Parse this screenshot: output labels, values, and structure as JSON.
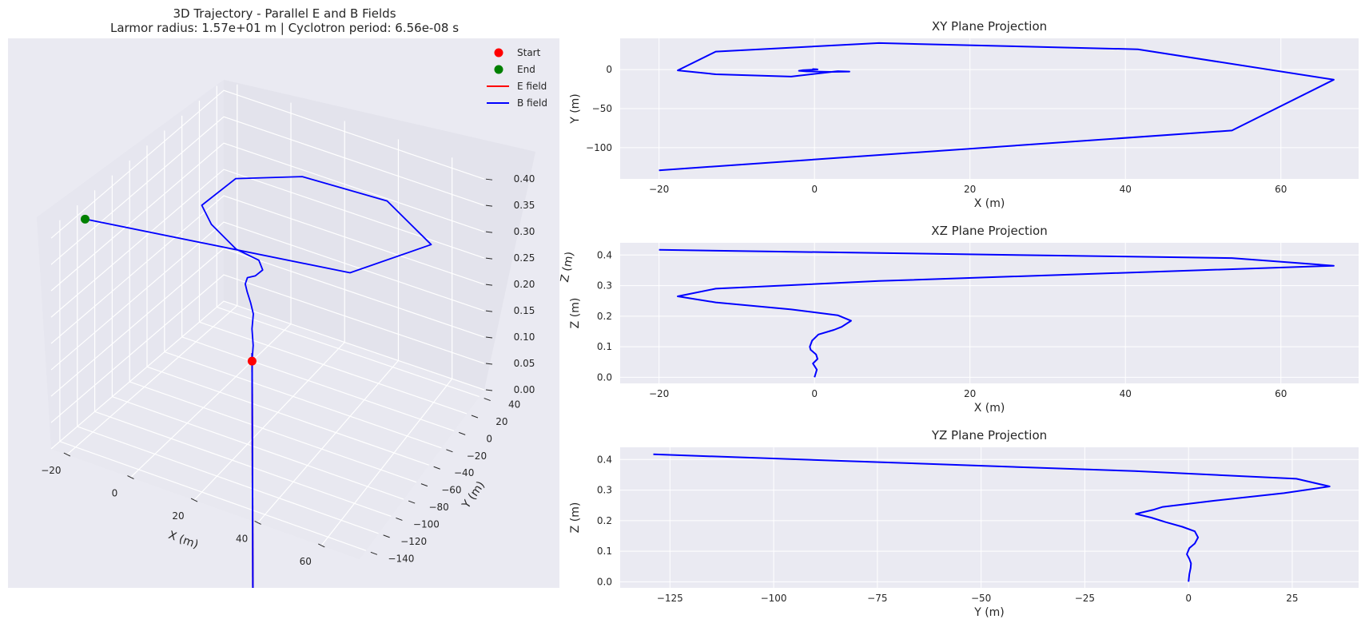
{
  "figure": {
    "title_line1": "3D Trajectory - Parallel E and B Fields",
    "title_line2": "Larmor radius: 1.57e+01 m | Cyclotron period: 6.56e-08 s"
  },
  "colors": {
    "panel_bg": "#eaeaf2",
    "grid": "#ffffff",
    "trajectory": "#0000ff",
    "e_field": "#ff0000",
    "b_field": "#0000ff",
    "start": "#ff0000",
    "end": "#008000"
  },
  "legend": {
    "placement": "top-right",
    "items": [
      {
        "label": "Start",
        "kind": "marker",
        "color": "#ff0000"
      },
      {
        "label": "End",
        "kind": "marker",
        "color": "#008000"
      },
      {
        "label": "E field",
        "kind": "line",
        "color": "#ff0000"
      },
      {
        "label": "B field",
        "kind": "line",
        "color": "#0000ff"
      }
    ]
  },
  "chart_data": [
    {
      "id": "traj3d",
      "type": "line",
      "projection": "3d",
      "title": "3D Trajectory - Parallel E and B Fields",
      "xlabel": "X (m)",
      "ylabel": "Y (m)",
      "zlabel": "Z (m)",
      "xticks": [
        -20,
        0,
        20,
        40,
        60
      ],
      "yticks": [
        40,
        20,
        0,
        -20,
        -40,
        -60,
        -80,
        -100,
        -120,
        -140
      ],
      "zticks": [
        0.0,
        0.05,
        0.1,
        0.15,
        0.2,
        0.25,
        0.3,
        0.35,
        0.4
      ],
      "zticks_text": [
        "0.00",
        "0.05",
        "0.10",
        "0.15",
        "0.20",
        "0.25",
        "0.30",
        "0.35",
        "0.40"
      ],
      "start": [
        0,
        0,
        0
      ],
      "end": [
        -20,
        -129,
        0.417
      ],
      "series": [
        {
          "x": [
            0,
            0.3,
            -0.2,
            0.4,
            -0.4,
            -1.5,
            -2,
            -1,
            2,
            4.5,
            3,
            -3,
            -12.7,
            -17.6,
            -12.7,
            8.3,
            41.6,
            66.8,
            53.7,
            -20
          ],
          "y": [
            0,
            0.3,
            0.6,
            0.2,
            -0.3,
            -0.8,
            -1.5,
            -2.3,
            -3,
            -2.5,
            -2,
            -9,
            -6,
            -1,
            23,
            34,
            26,
            -13,
            -78,
            -129
          ],
          "z": [
            0,
            0.03,
            0.06,
            0.09,
            0.11,
            0.13,
            0.145,
            0.16,
            0.17,
            0.185,
            0.2,
            0.22,
            0.245,
            0.265,
            0.29,
            0.315,
            0.34,
            0.365,
            0.39,
            0.417
          ]
        }
      ],
      "field_lines": [
        {
          "name": "E field",
          "direction": "z"
        },
        {
          "name": "B field",
          "direction": "z"
        }
      ]
    },
    {
      "id": "xy",
      "type": "line",
      "title": "XY Plane Projection",
      "xlabel": "X (m)",
      "ylabel": "Y (m)",
      "xlim": [
        -25,
        70
      ],
      "ylim": [
        -140,
        40
      ],
      "xticks": [
        -20,
        0,
        20,
        40,
        60
      ],
      "yticks": [
        -100,
        -50,
        0
      ],
      "xticks_text": [
        "−20",
        "0",
        "20",
        "40",
        "60"
      ],
      "yticks_text": [
        "−100",
        "−50",
        "0"
      ],
      "grid": true,
      "series": [
        {
          "x": [
            0,
            0.3,
            -0.2,
            0.4,
            -0.4,
            -1.5,
            -2,
            -1,
            2,
            4.5,
            3,
            -3,
            -12.7,
            -17.6,
            -12.7,
            8.3,
            41.6,
            66.8,
            53.7,
            -20
          ],
          "y": [
            0,
            0.3,
            0.6,
            0.2,
            -0.3,
            -0.8,
            -1.5,
            -2.3,
            -3,
            -2.5,
            -2,
            -9,
            -6,
            -1,
            23,
            34,
            26,
            -13,
            -78,
            -129
          ]
        }
      ]
    },
    {
      "id": "xz",
      "type": "line",
      "title": "XZ Plane Projection",
      "xlabel": "X (m)",
      "ylabel": "Z (m)",
      "xlim": [
        -25,
        70
      ],
      "ylim": [
        -0.02,
        0.44
      ],
      "xticks": [
        -20,
        0,
        20,
        40,
        60
      ],
      "yticks": [
        0.0,
        0.1,
        0.2,
        0.3,
        0.4
      ],
      "xticks_text": [
        "−20",
        "0",
        "20",
        "40",
        "60"
      ],
      "yticks_text": [
        "0.0",
        "0.1",
        "0.2",
        "0.3",
        "0.4"
      ],
      "grid": true,
      "series": [
        {
          "x": [
            0,
            0.3,
            -0.2,
            0.4,
            0.2,
            -0.5,
            -0.6,
            -0.3,
            0.5,
            2.5,
            3.5,
            4.7,
            3,
            -3,
            -12.7,
            -17.6,
            -12.7,
            8.3,
            66.8,
            53.7,
            -20
          ],
          "y": [
            0,
            0.025,
            0.045,
            0.06,
            0.075,
            0.09,
            0.1,
            0.12,
            0.14,
            0.155,
            0.165,
            0.185,
            0.203,
            0.222,
            0.245,
            0.265,
            0.29,
            0.315,
            0.365,
            0.39,
            0.417
          ]
        }
      ]
    },
    {
      "id": "yz",
      "type": "line",
      "title": "YZ Plane Projection",
      "xlabel": "Y (m)",
      "ylabel": "Z (m)",
      "xlim": [
        -137,
        41
      ],
      "ylim": [
        -0.02,
        0.44
      ],
      "xticks": [
        -125,
        -100,
        -75,
        -50,
        -25,
        0,
        25
      ],
      "yticks": [
        0.0,
        0.1,
        0.2,
        0.3,
        0.4
      ],
      "xticks_text": [
        "−125",
        "−100",
        "−75",
        "−50",
        "−25",
        "0",
        "25"
      ],
      "yticks_text": [
        "0.0",
        "0.1",
        "0.2",
        "0.3",
        "0.4"
      ],
      "grid": true,
      "series": [
        {
          "x": [
            0,
            0.2,
            0.5,
            0.6,
            0.2,
            -0.4,
            0.2,
            1.5,
            2.3,
            1.5,
            -1.5,
            -5.5,
            -9,
            -12.7,
            -8.6,
            -6.2,
            6,
            23,
            34,
            26,
            -13,
            -129
          ],
          "y": [
            0,
            0.025,
            0.045,
            0.06,
            0.075,
            0.09,
            0.11,
            0.125,
            0.145,
            0.165,
            0.18,
            0.195,
            0.21,
            0.222,
            0.235,
            0.245,
            0.265,
            0.29,
            0.312,
            0.337,
            0.362,
            0.417
          ]
        }
      ]
    }
  ]
}
